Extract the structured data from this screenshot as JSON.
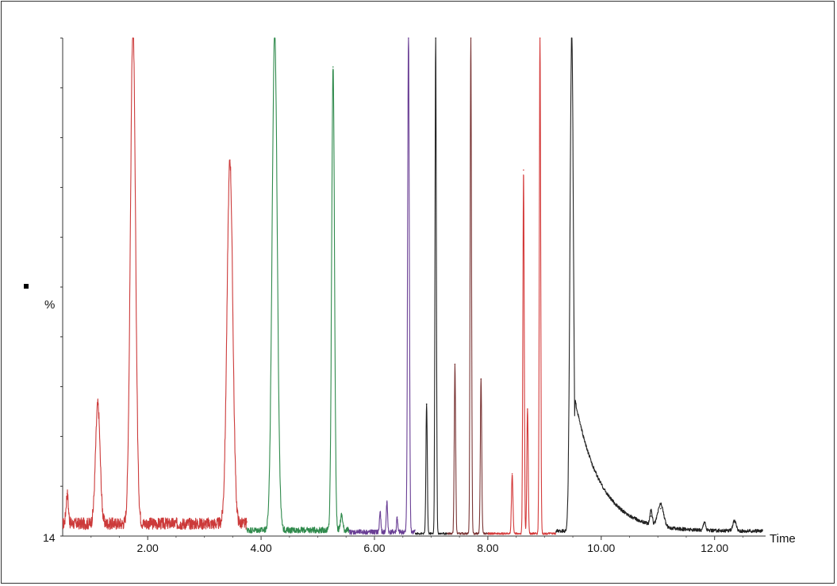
{
  "chart_data": {
    "type": "line",
    "title": "",
    "xlabel": "Time",
    "ylabel": "%",
    "y_baseline_label": "14",
    "xlim": [
      0.5,
      12.9
    ],
    "ylim": [
      0,
      100
    ],
    "x_ticks": [
      2.0,
      4.0,
      6.0,
      8.0,
      10.0,
      12.0
    ],
    "x_tick_labels": [
      "2.00",
      "4.00",
      "6.00",
      "8.00",
      "10.00",
      "12.00"
    ],
    "grid": false,
    "series": [
      {
        "color": "#cc3a3a",
        "baseline": {
          "x_start": 0.5,
          "x_end": 3.75,
          "y": 2.5
        },
        "noise": 1.2,
        "peaks": [
          {
            "x": 0.58,
            "y": 6,
            "w": 0.02
          },
          {
            "x": 1.12,
            "y": 24,
            "w": 0.04
          },
          {
            "x": 1.74,
            "y": 100,
            "w": 0.045
          },
          {
            "x": 3.45,
            "y": 73,
            "w": 0.05
          }
        ]
      },
      {
        "color": "#2f8a4c",
        "baseline": {
          "x_start": 3.75,
          "x_end": 5.55,
          "y": 1.2
        },
        "noise": 0.6,
        "peaks": [
          {
            "x": 4.24,
            "y": 100,
            "w": 0.045
          },
          {
            "x": 5.27,
            "y": 93,
            "w": 0.025
          },
          {
            "x": 5.42,
            "y": 3,
            "w": 0.02
          }
        ]
      },
      {
        "color": "#6a3f95",
        "baseline": {
          "x_start": 5.55,
          "x_end": 6.72,
          "y": 0.8
        },
        "noise": 0.5,
        "peaks": [
          {
            "x": 6.1,
            "y": 4,
            "w": 0.012
          },
          {
            "x": 6.22,
            "y": 6,
            "w": 0.012
          },
          {
            "x": 6.4,
            "y": 3,
            "w": 0.01
          },
          {
            "x": 6.6,
            "y": 100,
            "w": 0.015
          }
        ]
      },
      {
        "color": "#222222",
        "baseline": {
          "x_start": 6.72,
          "x_end": 7.28,
          "y": 0.5
        },
        "noise": 0.2,
        "peaks": [
          {
            "x": 6.92,
            "y": 26,
            "w": 0.012
          },
          {
            "x": 7.08,
            "y": 100,
            "w": 0.012
          }
        ]
      },
      {
        "color": "#7a3535",
        "baseline": {
          "x_start": 7.28,
          "x_end": 8.0,
          "y": 0.5
        },
        "noise": 0.2,
        "peaks": [
          {
            "x": 7.42,
            "y": 34,
            "w": 0.012
          },
          {
            "x": 7.7,
            "y": 100,
            "w": 0.012
          },
          {
            "x": 7.88,
            "y": 31,
            "w": 0.012
          }
        ]
      },
      {
        "color": "#d43a3a",
        "baseline": {
          "x_start": 8.0,
          "x_end": 9.2,
          "y": 0.5
        },
        "noise": 0.2,
        "peaks": [
          {
            "x": 8.43,
            "y": 12,
            "w": 0.013
          },
          {
            "x": 8.63,
            "y": 73,
            "w": 0.012
          },
          {
            "x": 8.7,
            "y": 25,
            "w": 0.012
          },
          {
            "x": 8.92,
            "y": 100,
            "w": 0.012
          }
        ]
      },
      {
        "color": "#222222",
        "baseline": {
          "x_start": 9.2,
          "x_end": 12.85,
          "y": 1.0
        },
        "noise": 0.35,
        "peaks": [
          {
            "x": 9.48,
            "y": 100,
            "w": 0.03,
            "tail": 0.45
          },
          {
            "x": 10.88,
            "y": 3,
            "w": 0.02
          },
          {
            "x": 11.05,
            "y": 4.5,
            "w": 0.05
          },
          {
            "x": 11.82,
            "y": 1.8,
            "w": 0.02
          },
          {
            "x": 12.35,
            "y": 2.0,
            "w": 0.03
          }
        ]
      }
    ]
  }
}
